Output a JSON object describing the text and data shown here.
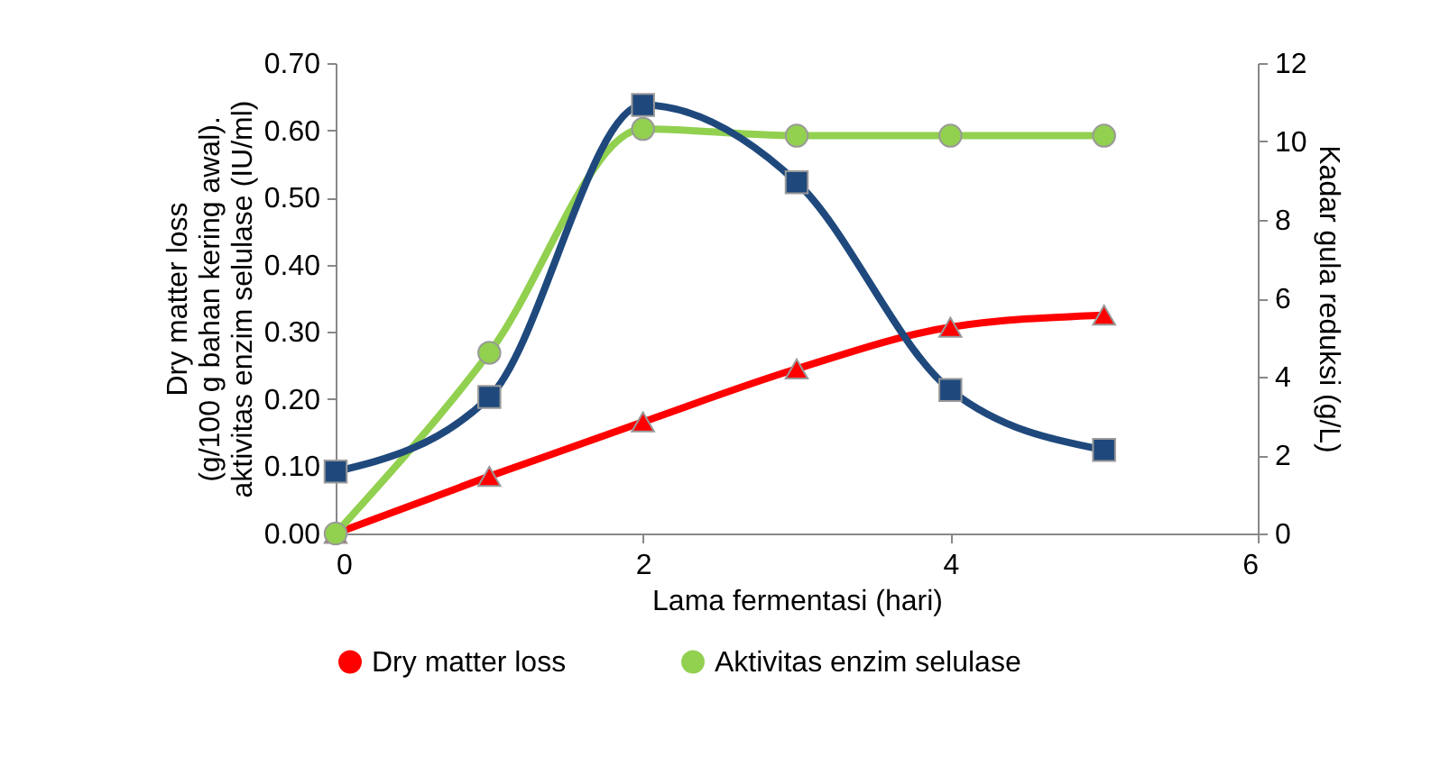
{
  "chart_data": {
    "type": "line",
    "xlabel": "Lama fermentasi (hari)",
    "ylabel": "Dry matter loss\n(g/100 g bahan kering awal).\naktivitas enzim selulase (IU/ml)",
    "y2label": "Kadar gula reduksi (g/L)",
    "x": [
      0,
      1,
      2,
      3,
      4,
      5
    ],
    "xlim": [
      0,
      6
    ],
    "xticks": [
      0,
      2,
      4,
      6
    ],
    "ylim": [
      0,
      0.7
    ],
    "yticks": [
      {
        "value": 0,
        "label": "0.00"
      },
      {
        "value": 0.1,
        "label": "0.10"
      },
      {
        "value": 0.2,
        "label": "0.20"
      },
      {
        "value": 0.3,
        "label": "0.30"
      },
      {
        "value": 0.4,
        "label": "0.40"
      },
      {
        "value": 0.5,
        "label": "0.50"
      },
      {
        "value": 0.6,
        "label": "0.60"
      },
      {
        "value": 0.7,
        "label": "0.70"
      }
    ],
    "y2lim": [
      0,
      12
    ],
    "y2ticks": [
      0,
      2,
      4,
      6,
      8,
      10,
      12
    ],
    "legend": "bottom",
    "grid": false,
    "line_style": "solid",
    "series": [
      {
        "name": "Dry matter loss",
        "color": "#ff0000",
        "marker": "triangle",
        "values": [
          0,
          0.085,
          0.166,
          0.245,
          0.307,
          0.325
        ]
      },
      {
        "name": "Aktivitas enzim selulase",
        "color": "#92d050",
        "marker": "circle",
        "values": [
          0,
          0.269,
          0.602,
          0.592,
          0.592,
          0.592
        ]
      },
      {
        "color": "#1f497d",
        "marker": "square",
        "axis": "y2",
        "values": [
          1.58,
          3.48,
          10.93,
          8.96,
          3.66,
          2.13
        ]
      }
    ]
  }
}
